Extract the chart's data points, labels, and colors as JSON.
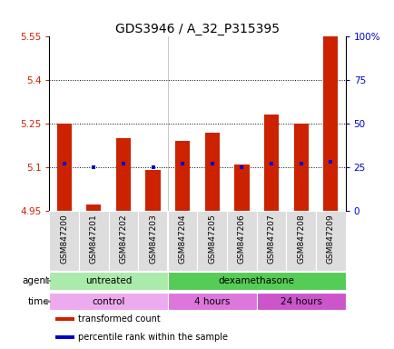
{
  "title": "GDS3946 / A_32_P315395",
  "samples": [
    "GSM847200",
    "GSM847201",
    "GSM847202",
    "GSM847203",
    "GSM847204",
    "GSM847205",
    "GSM847206",
    "GSM847207",
    "GSM847208",
    "GSM847209"
  ],
  "bar_values": [
    5.25,
    4.97,
    5.2,
    5.09,
    5.19,
    5.22,
    5.11,
    5.28,
    5.25,
    5.55
  ],
  "bar_base": 4.95,
  "percentile_values": [
    27,
    25,
    27,
    25,
    27,
    27,
    25,
    27,
    27,
    28
  ],
  "ylim": [
    4.95,
    5.55
  ],
  "ylim_right": [
    0,
    100
  ],
  "yticks_left": [
    4.95,
    5.1,
    5.25,
    5.4,
    5.55
  ],
  "yticks_right": [
    0,
    25,
    50,
    75,
    100
  ],
  "ytick_labels_left": [
    "4.95",
    "5.1",
    "5.25",
    "5.4",
    "5.55"
  ],
  "ytick_labels_right": [
    "0",
    "25",
    "50",
    "75",
    "100%"
  ],
  "hline_values": [
    5.1,
    5.25,
    5.4
  ],
  "bar_color": "#cc2200",
  "percentile_color": "#0000cc",
  "agent_groups": [
    {
      "label": "untreated",
      "start": 0,
      "end": 4,
      "color": "#aaeaaa"
    },
    {
      "label": "dexamethasone",
      "start": 4,
      "end": 10,
      "color": "#55cc55"
    }
  ],
  "time_groups": [
    {
      "label": "control",
      "start": 0,
      "end": 4,
      "color": "#eeaaee"
    },
    {
      "label": "4 hours",
      "start": 4,
      "end": 7,
      "color": "#dd77dd"
    },
    {
      "label": "24 hours",
      "start": 7,
      "end": 10,
      "color": "#cc55cc"
    }
  ],
  "legend_items": [
    {
      "label": "transformed count",
      "color": "#cc2200"
    },
    {
      "label": "percentile rank within the sample",
      "color": "#0000cc"
    }
  ],
  "bar_width": 0.5,
  "bg_color": "#ffffff",
  "tick_label_color_left": "#cc2200",
  "tick_label_color_right": "#0000cc",
  "title_fontsize": 10,
  "tick_fontsize": 7.5,
  "sample_fontsize": 6.5
}
